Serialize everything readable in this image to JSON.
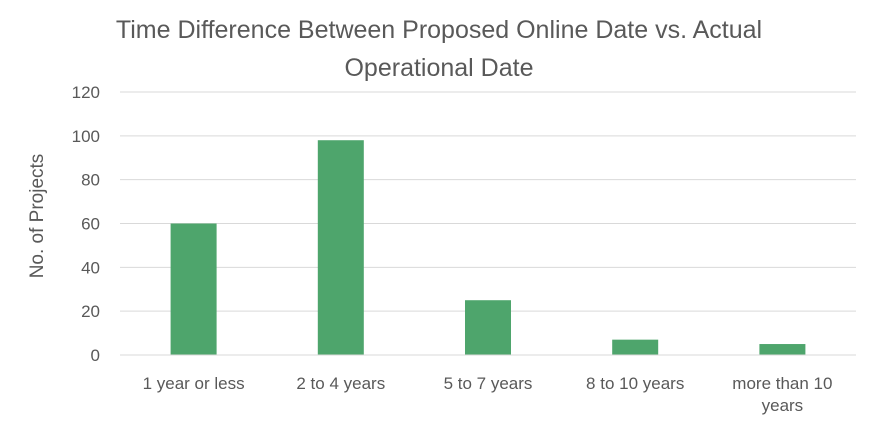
{
  "chart_data": {
    "type": "bar",
    "title_lines": [
      "Time Difference Between Proposed Online Date vs. Actual",
      "Operational Date"
    ],
    "ylabel": "No. of Projects",
    "xlabel": "",
    "categories": [
      [
        "1 year or less"
      ],
      [
        "2 to 4 years"
      ],
      [
        "5 to 7 years"
      ],
      [
        "8 to 10 years"
      ],
      [
        "more than 10",
        "years"
      ]
    ],
    "values": [
      60,
      98,
      25,
      7,
      5
    ],
    "ylim": [
      0,
      120
    ],
    "yticks": [
      0,
      20,
      40,
      60,
      80,
      100,
      120
    ],
    "grid": true,
    "legend": "none",
    "bar_color": "#4ea56c",
    "grid_color": "#d9d9d9"
  }
}
